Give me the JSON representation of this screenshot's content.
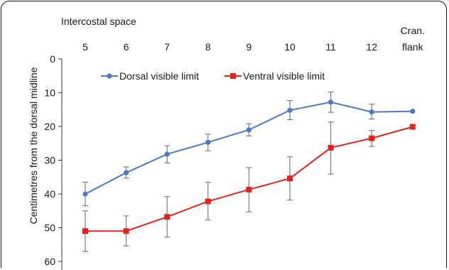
{
  "chart_data": {
    "type": "line",
    "xlabel": "Intercostal space",
    "ylabel": "Centimetres from the dorsal midline",
    "categories": [
      "5",
      "6",
      "7",
      "8",
      "9",
      "10",
      "11",
      "12",
      "Cran. flank"
    ],
    "ylim": [
      0,
      60
    ],
    "y_inverted": true,
    "yticks": [
      0,
      10,
      20,
      30,
      40,
      50,
      60
    ],
    "grid": false,
    "legend_position": "top",
    "series": [
      {
        "name": "Dorsal visible limit",
        "color": "#4a7ac7",
        "marker": "circle",
        "values": [
          40,
          33.7,
          28.2,
          24.7,
          21,
          15.2,
          12.8,
          15.7,
          15.5
        ],
        "error_low": [
          36.5,
          32,
          25.7,
          22.3,
          19.2,
          12.3,
          9.8,
          13.4,
          15.5
        ],
        "error_high": [
          43.5,
          35.3,
          30.8,
          27.2,
          22.8,
          18,
          15.8,
          17.8,
          15.5
        ]
      },
      {
        "name": "Ventral visible limit",
        "color": "#e8201a",
        "marker": "square",
        "values": [
          51,
          51,
          46.8,
          42.2,
          38.7,
          35.4,
          26.3,
          23.5,
          20.1
        ],
        "error_low": [
          45,
          46.5,
          40.8,
          36.5,
          32.2,
          29,
          18.7,
          21.2,
          20.1
        ],
        "error_high": [
          57,
          55.4,
          52.8,
          47.7,
          45.3,
          41.8,
          34.1,
          25.9,
          20.1
        ]
      }
    ]
  }
}
